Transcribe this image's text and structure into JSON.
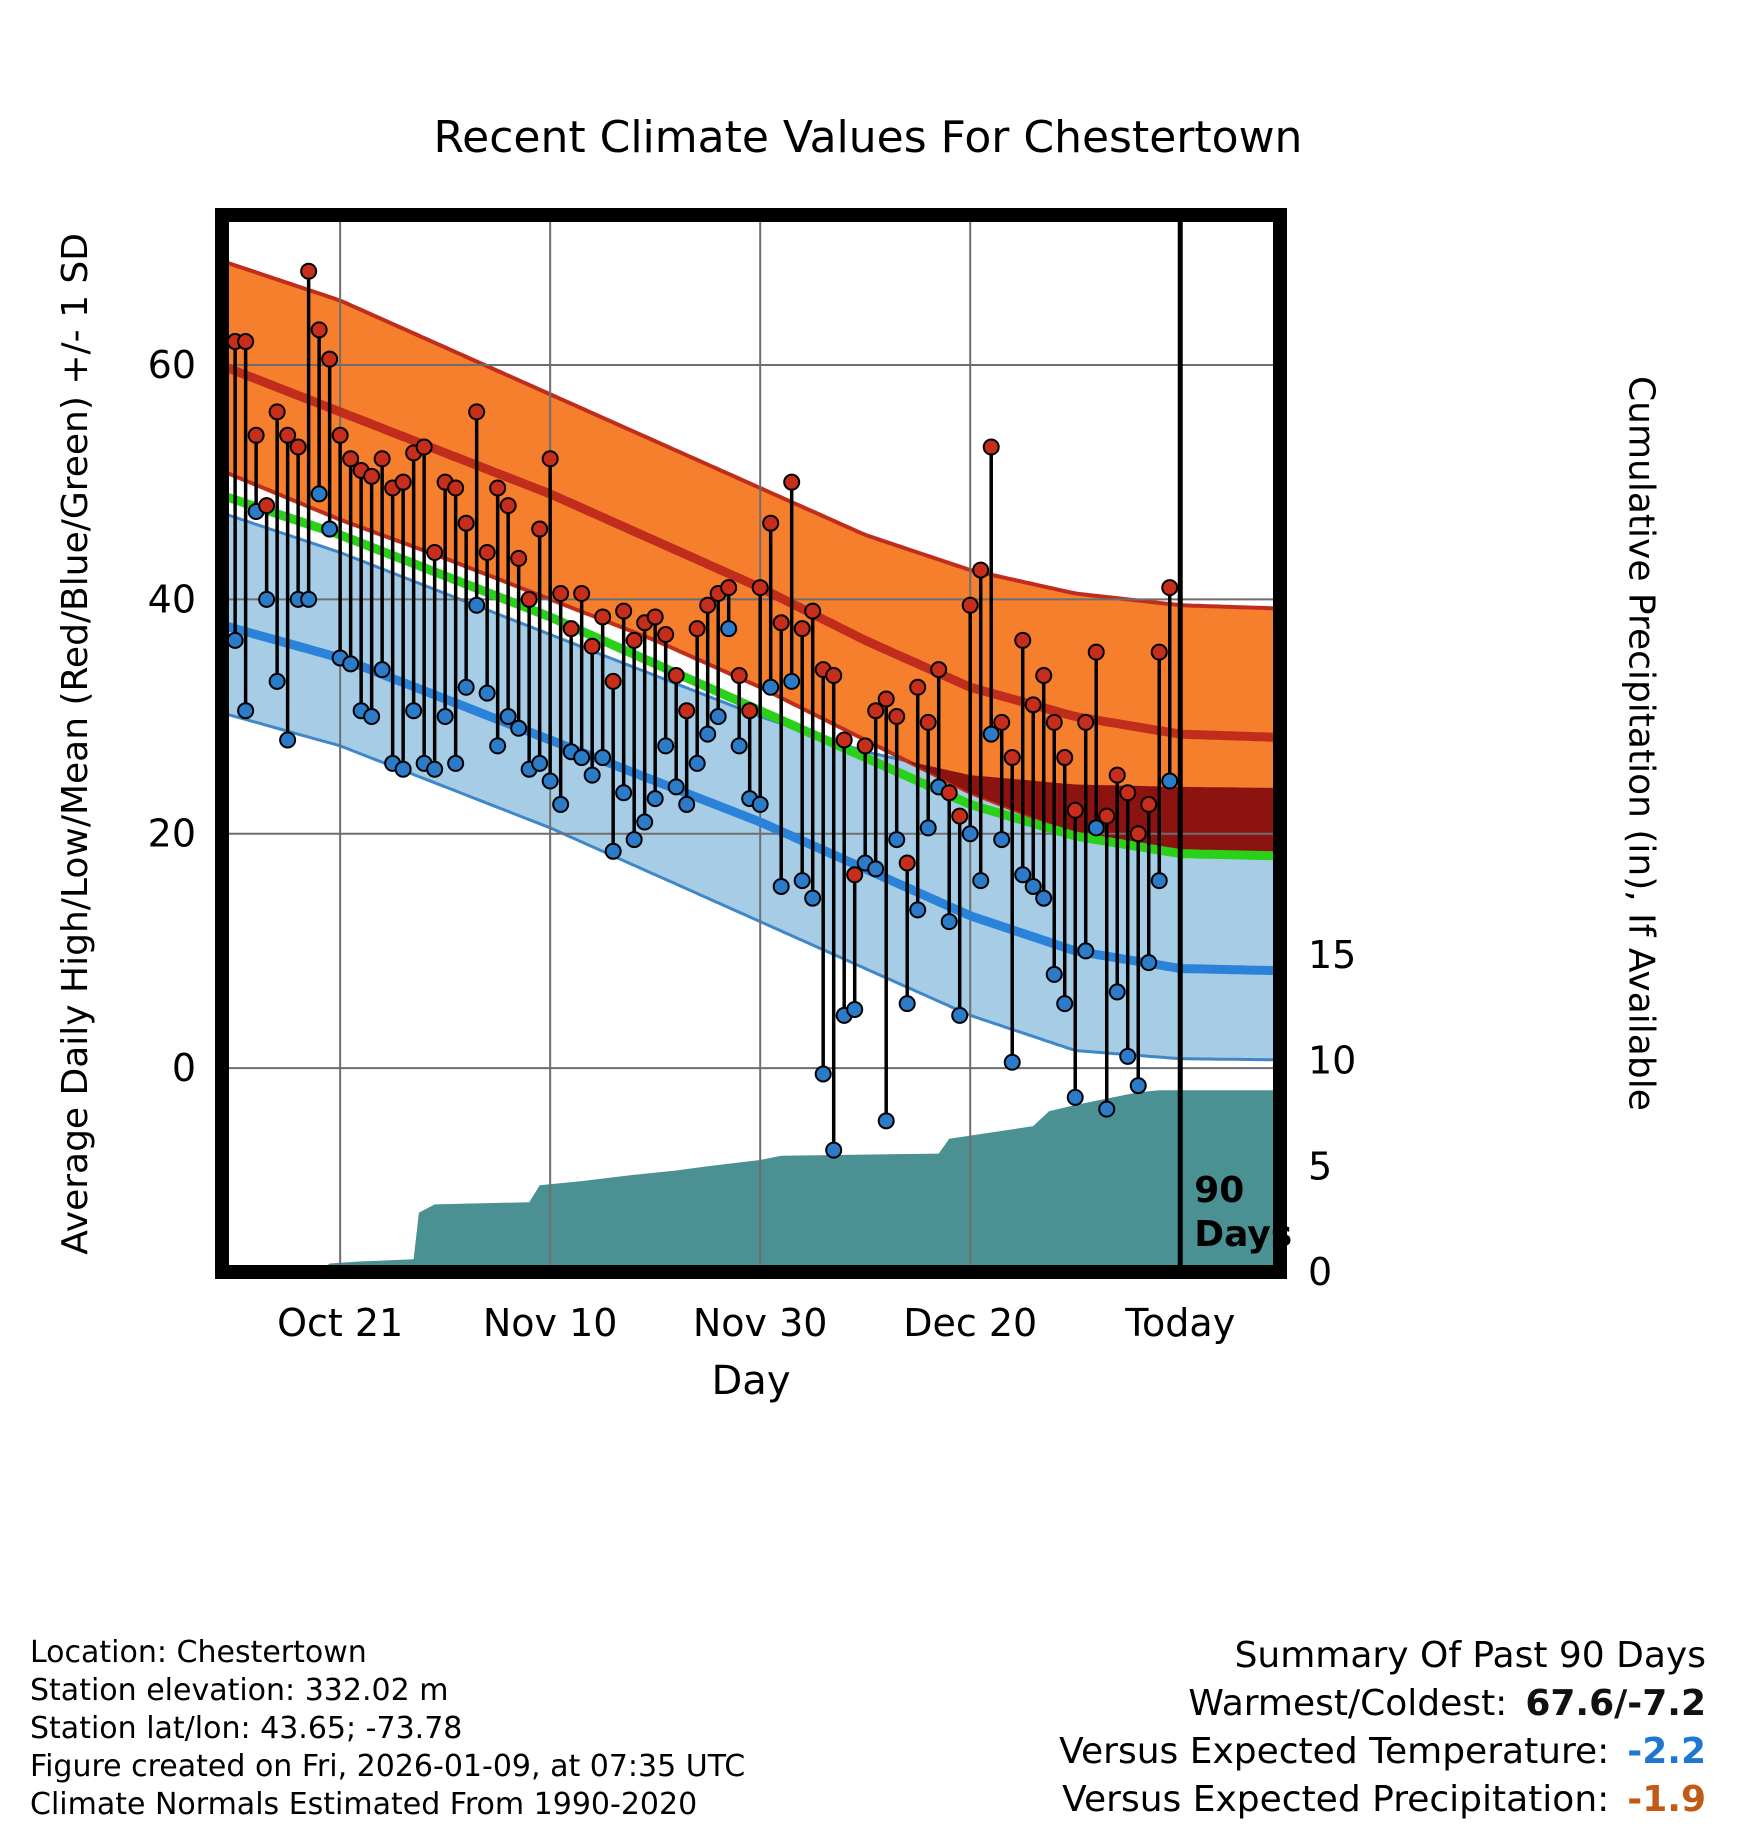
{
  "title": "Recent Climate Values For Chestertown",
  "colors": {
    "high_band": "#f57f2d",
    "red_line": "#c12d1c",
    "overlap_band": "#8c1310",
    "low_band": "#a7cde6",
    "low_band_edge": "#3f87c6",
    "blue_line": "#2b82d9",
    "mean_line": "#2bd118",
    "precip_fill": "#4b9193",
    "stem": "#000000",
    "high_dot": "#c62d1a",
    "low_dot": "#2b7bc9",
    "grid": "#6e6e6e",
    "border": "#000000"
  },
  "chart_data": {
    "type": "line",
    "title": "Recent Climate Values For Chestertown",
    "xlabel": "Day",
    "ylabel_left": "Average Daily High/Low/Mean (Red/Blue/Green) +/- 1 SD",
    "ylabel_right": "Cumulative Precipitation (in), If Available",
    "x_axis": {
      "range_days": [
        -1.25,
        99.5
      ],
      "ticks": [
        {
          "day": 10,
          "label": "Oct 21"
        },
        {
          "day": 30,
          "label": "Nov 10"
        },
        {
          "day": 50,
          "label": "Nov 30"
        },
        {
          "day": 70,
          "label": "Dec 20"
        },
        {
          "day": 90,
          "label": "Today"
        }
      ]
    },
    "y_left": {
      "range": [
        -17.4,
        72.8
      ],
      "ticks": [
        0,
        20,
        40,
        60
      ]
    },
    "y_right": {
      "range": [
        0,
        50
      ],
      "ticks": [
        0,
        5,
        10,
        15
      ]
    },
    "normals": {
      "days": [
        0,
        10,
        20,
        30,
        40,
        50,
        60,
        70,
        80,
        90,
        100
      ],
      "high_plus_sd": [
        68.5,
        65.5,
        61.5,
        57.5,
        53.5,
        49.5,
        45.5,
        42.5,
        40.5,
        39.5,
        39.2
      ],
      "high_mean": [
        59.5,
        56.0,
        52.5,
        49.0,
        45.0,
        41.0,
        36.5,
        32.5,
        30.0,
        28.5,
        28.2
      ],
      "high_minus_sd": [
        50.5,
        46.8,
        43.5,
        40.0,
        36.5,
        32.5,
        28.0,
        23.5,
        20.0,
        18.5,
        18.3
      ],
      "mean": [
        48.5,
        45.5,
        42.0,
        38.5,
        34.5,
        30.5,
        26.5,
        22.5,
        19.8,
        18.3,
        18.1
      ],
      "low_plus_sd": [
        47.0,
        44.0,
        40.5,
        37.0,
        33.5,
        30.0,
        27.0,
        25.0,
        24.2,
        24.0,
        23.9
      ],
      "low_mean": [
        37.5,
        35.0,
        31.5,
        28.0,
        24.5,
        21.0,
        17.0,
        13.0,
        10.0,
        8.5,
        8.3
      ],
      "low_minus_sd": [
        30.0,
        27.5,
        24.0,
        20.5,
        16.5,
        12.5,
        8.5,
        4.5,
        1.5,
        0.8,
        0.7
      ]
    },
    "daily": {
      "start_day": 0,
      "highs": [
        62,
        62,
        54,
        48,
        56,
        54,
        53,
        68,
        63,
        60.5,
        54,
        52,
        51,
        50.5,
        52,
        49.5,
        50,
        52.5,
        53,
        44,
        50,
        49.5,
        46.5,
        56,
        44,
        49.5,
        48,
        43.5,
        40,
        46,
        52,
        40.5,
        37.5,
        40.5,
        36,
        38.5,
        33,
        39,
        36.5,
        38,
        38.5,
        37,
        33.5,
        30.5,
        37.5,
        39.5,
        40.5,
        41,
        33.5,
        30.5,
        41,
        46.5,
        38,
        50,
        37.5,
        39,
        34,
        33.5,
        28,
        16.5,
        27.5,
        30.5,
        31.5,
        30,
        17.5,
        32.5,
        29.5,
        34,
        23.5,
        21.5,
        39.5,
        42.5,
        53,
        29.5,
        26.5,
        36.5,
        31,
        33.5,
        29.5,
        26.5,
        22,
        29.5,
        35.5,
        21.5,
        25,
        23.5,
        20,
        22.5,
        35.5,
        41
      ],
      "lows": [
        36.5,
        30.5,
        47.5,
        40,
        33,
        28,
        40,
        40,
        49,
        46,
        35,
        34.5,
        30.5,
        30,
        34,
        26,
        25.5,
        30.5,
        26,
        25.5,
        30,
        26,
        32.5,
        39.5,
        32,
        27.5,
        30,
        29,
        25.5,
        26,
        24.5,
        22.5,
        27,
        26.5,
        25,
        26.5,
        18.5,
        23.5,
        19.5,
        21,
        23,
        27.5,
        24,
        22.5,
        26,
        28.5,
        30,
        37.5,
        27.5,
        23,
        22.5,
        32.5,
        15.5,
        33,
        16,
        14.5,
        -0.5,
        -7,
        4.5,
        5,
        17.5,
        17,
        -4.5,
        19.5,
        5.5,
        13.5,
        20.5,
        24,
        12.5,
        4.5,
        20,
        16,
        28.5,
        19.5,
        0.5,
        16.5,
        15.5,
        14.5,
        8,
        5.5,
        -2.5,
        10,
        20.5,
        -3.5,
        6.5,
        1,
        -1.5,
        9,
        16,
        24.5
      ]
    },
    "precip_cumulative": {
      "days": [
        0,
        8,
        9,
        12,
        17,
        17.5,
        19,
        28,
        29,
        33,
        38,
        42,
        45,
        50,
        52,
        67,
        68,
        72,
        76,
        77.5,
        80,
        84,
        86,
        88,
        99.5
      ],
      "values": [
        0,
        0,
        0.4,
        0.5,
        0.6,
        2.8,
        3.2,
        3.3,
        4.1,
        4.3,
        4.6,
        4.8,
        5,
        5.3,
        5.5,
        5.6,
        6.3,
        6.6,
        6.9,
        7.6,
        7.9,
        8.3,
        8.5,
        8.6,
        8.6
      ]
    },
    "annotation": {
      "day": 90,
      "lines": [
        "90",
        "Days"
      ]
    }
  },
  "footer": {
    "lines": [
      "Location: Chestertown",
      "Station elevation: 332.02 m",
      "Station lat/lon: 43.65; -73.78",
      "Figure created on Fri, 2026-01-09, at 07:35 UTC",
      "Climate Normals Estimated From 1990-2020"
    ]
  },
  "summary": {
    "title": "Summary Of Past 90 Days",
    "rows": [
      {
        "label": "Warmest/Coldest:",
        "value": "67.6/-7.2",
        "color": "#111111"
      },
      {
        "label": "Versus Expected Temperature:",
        "value": "-2.2",
        "color": "#1f77d2"
      },
      {
        "label": "Versus Expected Precipitation:",
        "value": "-1.9",
        "color": "#c05a14"
      }
    ]
  }
}
